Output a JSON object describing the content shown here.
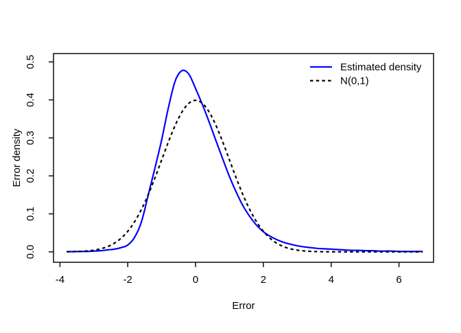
{
  "chart_data": {
    "type": "line",
    "title": "",
    "xlabel": "Error",
    "ylabel": "Error density",
    "grid": false,
    "x_ticks": [
      -4,
      -2,
      0,
      2,
      4,
      6
    ],
    "x_tick_labels": [
      "-4",
      "-2",
      "0",
      "2",
      "4",
      "6"
    ],
    "y_ticks": [
      0.0,
      0.1,
      0.2,
      0.3,
      0.4,
      0.5
    ],
    "y_tick_labels": [
      "0.0",
      "0.1",
      "0.2",
      "0.3",
      "0.4",
      "0.5"
    ],
    "xlim_draw": [
      -4.19,
      7.02
    ],
    "ylim_draw": [
      -0.0275,
      0.522
    ],
    "x_range_data": [
      -3.8,
      6.7
    ],
    "legend": {
      "position": "topright",
      "entries": [
        {
          "label": "Estimated density",
          "color": "#0000ff",
          "style": "solid"
        },
        {
          "label": "N(0,1)",
          "color": "#000000",
          "style": "dashed"
        }
      ]
    },
    "x": [
      -3.8,
      -3.6,
      -3.4,
      -3.2,
      -3.0,
      -2.8,
      -2.6,
      -2.4,
      -2.2,
      -2.0,
      -1.8,
      -1.6,
      -1.4,
      -1.2,
      -1.0,
      -0.8,
      -0.6,
      -0.4,
      -0.2,
      0.0,
      0.2,
      0.4,
      0.6,
      0.8,
      1.0,
      1.2,
      1.4,
      1.6,
      1.8,
      2.0,
      2.2,
      2.4,
      2.6,
      2.8,
      3.0,
      3.2,
      3.4,
      3.6,
      3.8,
      4.0,
      4.2,
      4.4,
      4.6,
      4.8,
      5.0,
      5.2,
      5.4,
      5.6,
      5.8,
      6.0,
      6.2,
      6.4,
      6.6,
      6.7
    ],
    "series": [
      {
        "name": "Estimated density",
        "color": "#0000ff",
        "style": "solid",
        "values": [
          0.0005,
          0.0005,
          0.001,
          0.001,
          0.002,
          0.003,
          0.005,
          0.007,
          0.011,
          0.018,
          0.038,
          0.078,
          0.148,
          0.22,
          0.295,
          0.38,
          0.45,
          0.477,
          0.468,
          0.43,
          0.388,
          0.342,
          0.293,
          0.245,
          0.198,
          0.157,
          0.121,
          0.093,
          0.07,
          0.053,
          0.041,
          0.032,
          0.025,
          0.02,
          0.016,
          0.013,
          0.011,
          0.009,
          0.008,
          0.007,
          0.006,
          0.005,
          0.004,
          0.004,
          0.003,
          0.003,
          0.002,
          0.002,
          0.002,
          0.001,
          0.001,
          0.001,
          0.001,
          0.001
        ]
      },
      {
        "name": "N(0,1)",
        "color": "#000000",
        "style": "dashed",
        "values": [
          0.0003,
          0.0006,
          0.0012,
          0.0024,
          0.0044,
          0.0079,
          0.0136,
          0.0224,
          0.0355,
          0.054,
          0.079,
          0.1109,
          0.1497,
          0.1942,
          0.242,
          0.2897,
          0.3332,
          0.3683,
          0.391,
          0.3989,
          0.391,
          0.3683,
          0.3332,
          0.2897,
          0.242,
          0.1942,
          0.1497,
          0.1109,
          0.079,
          0.054,
          0.0355,
          0.0224,
          0.0136,
          0.0079,
          0.0044,
          0.0024,
          0.0012,
          0.0006,
          0.0003,
          0.0001,
          0.0001,
          0.0,
          0.0,
          0.0,
          0.0,
          0.0,
          0.0,
          0.0,
          0.0,
          0.0,
          0.0,
          0.0,
          0.0,
          0.0
        ]
      }
    ]
  },
  "colors": {
    "background": "#ffffff",
    "axis": "#1a1a1a",
    "estimated_line": "#0000ff",
    "normal_line": "#000000"
  }
}
